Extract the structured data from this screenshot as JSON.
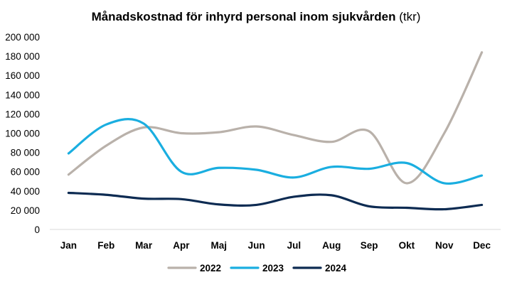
{
  "chart_data": {
    "type": "line",
    "title": "Månadskostnad för inhyrd personal inom sjukvården",
    "title_unit": "(tkr)",
    "xlabel": "",
    "ylabel": "",
    "categories": [
      "Jan",
      "Feb",
      "Mar",
      "Apr",
      "Maj",
      "Jun",
      "Jul",
      "Aug",
      "Sep",
      "Okt",
      "Nov",
      "Dec"
    ],
    "ylim": [
      0,
      200000
    ],
    "y_ticks": [
      0,
      20000,
      40000,
      60000,
      80000,
      100000,
      120000,
      140000,
      160000,
      180000,
      200000
    ],
    "y_tick_labels": [
      "0",
      "20 000",
      "40 000",
      "60 000",
      "80 000",
      "100 000",
      "120 000",
      "140 000",
      "160 000",
      "180 000",
      "200 000"
    ],
    "grid": false,
    "legend_position": "bottom",
    "series": [
      {
        "name": "2022",
        "color": "#b9b1aa",
        "values": [
          57000,
          87000,
          106000,
          100000,
          101000,
          107000,
          98000,
          91000,
          102000,
          48000,
          100000,
          184000
        ]
      },
      {
        "name": "2023",
        "color": "#1aaee0",
        "values": [
          79000,
          109000,
          110000,
          60000,
          64000,
          62000,
          54000,
          65000,
          63000,
          69000,
          48000,
          56000
        ]
      },
      {
        "name": "2024",
        "color": "#0d2b52",
        "values": [
          38000,
          36000,
          32000,
          31500,
          26000,
          25500,
          34000,
          35500,
          24000,
          22500,
          21000,
          25500
        ]
      }
    ]
  }
}
